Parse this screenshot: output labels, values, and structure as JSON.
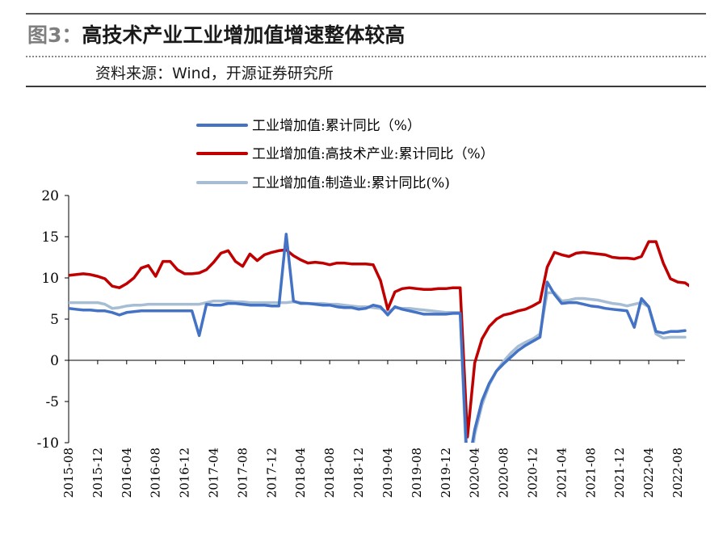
{
  "header": {
    "figure_label": "图3：",
    "title": "高技术产业工业增加值增速整体较高",
    "source": "资料来源：Wind，开源证券研究所"
  },
  "chart_data": {
    "type": "line",
    "legend_position": "top-center",
    "grid": false,
    "ylim": [
      -10,
      20
    ],
    "yticks": [
      -10,
      -5,
      0,
      5,
      10,
      15,
      20
    ],
    "xticks": [
      "2015-08",
      "2015-12",
      "2016-04",
      "2016-08",
      "2016-12",
      "2017-04",
      "2017-08",
      "2017-12",
      "2018-04",
      "2018-08",
      "2018-12",
      "2019-04",
      "2019-08",
      "2019-12",
      "2020-04",
      "2020-08",
      "2020-12",
      "2021-04",
      "2021-08",
      "2021-12",
      "2022-04",
      "2022-08"
    ],
    "x_start": "2015-08",
    "series": [
      {
        "name": "工业增加值:累计同比（%）",
        "color": "#4472C4",
        "values": [
          6.3,
          6.2,
          6.1,
          6.1,
          6.0,
          6.0,
          5.8,
          5.5,
          5.8,
          5.9,
          6.0,
          6.0,
          6.0,
          6.0,
          6.0,
          6.0,
          6.0,
          6.0,
          3.0,
          6.8,
          6.7,
          6.7,
          6.9,
          6.9,
          6.8,
          6.7,
          6.7,
          6.7,
          6.6,
          6.6,
          15.3,
          7.2,
          6.9,
          6.9,
          6.8,
          6.7,
          6.7,
          6.5,
          6.4,
          6.4,
          6.2,
          6.3,
          6.7,
          6.5,
          5.5,
          6.5,
          6.2,
          6.0,
          5.8,
          5.6,
          5.6,
          5.6,
          5.6,
          5.7,
          5.7,
          -13.5,
          -8.4,
          -4.9,
          -2.8,
          -1.3,
          -0.4,
          0.4,
          1.2,
          1.8,
          2.3,
          2.8,
          9.5,
          8.0,
          6.9,
          7.0,
          7.0,
          6.8,
          6.6,
          6.5,
          6.3,
          6.2,
          6.1,
          6.0,
          4.0,
          7.5,
          6.5,
          3.5,
          3.3,
          3.5,
          3.5,
          3.6
        ]
      },
      {
        "name": "工业增加值:高技术产业:累计同比（%）",
        "color": "#C00000",
        "values": [
          10.3,
          10.4,
          10.5,
          10.4,
          10.2,
          9.9,
          9.0,
          8.8,
          9.3,
          10.0,
          11.2,
          11.5,
          10.2,
          12.0,
          12.0,
          11.0,
          10.5,
          10.5,
          10.6,
          11.0,
          11.9,
          13.0,
          13.3,
          12.0,
          11.4,
          12.9,
          12.1,
          12.8,
          13.1,
          13.3,
          13.4,
          12.7,
          12.2,
          11.8,
          11.9,
          11.8,
          11.6,
          11.8,
          11.8,
          11.7,
          11.7,
          11.7,
          11.6,
          9.7,
          6.2,
          8.3,
          8.7,
          8.8,
          8.7,
          8.6,
          8.6,
          8.7,
          8.7,
          8.8,
          8.8,
          -9.3,
          -0.3,
          2.6,
          4.1,
          5.0,
          5.5,
          5.7,
          6.0,
          6.2,
          6.6,
          7.1,
          11.3,
          13.1,
          12.8,
          12.6,
          13.0,
          13.1,
          13.0,
          12.9,
          12.8,
          12.5,
          12.4,
          12.4,
          12.3,
          12.6,
          14.4,
          14.4,
          11.8,
          9.9,
          9.5,
          9.4,
          8.8
        ]
      },
      {
        "name": "工业增加值:制造业:累计同比(%)",
        "color": "#A6BDD4",
        "values": [
          7.0,
          7.0,
          7.0,
          7.0,
          7.0,
          6.8,
          6.3,
          6.4,
          6.6,
          6.7,
          6.7,
          6.8,
          6.8,
          6.8,
          6.8,
          6.8,
          6.8,
          6.8,
          6.8,
          7.0,
          7.2,
          7.2,
          7.2,
          7.1,
          7.1,
          7.0,
          7.0,
          7.0,
          7.0,
          7.0,
          7.0,
          7.1,
          7.0,
          6.9,
          6.9,
          6.9,
          6.8,
          6.8,
          6.7,
          6.6,
          6.5,
          6.5,
          6.4,
          6.3,
          5.8,
          6.4,
          6.3,
          6.3,
          6.2,
          6.1,
          6.0,
          5.9,
          5.8,
          5.8,
          5.8,
          -15.7,
          -9.0,
          -5.4,
          -3.0,
          -1.3,
          -0.1,
          0.9,
          1.7,
          2.2,
          2.6,
          3.2,
          8.2,
          8.2,
          7.2,
          7.3,
          7.5,
          7.5,
          7.4,
          7.3,
          7.1,
          6.9,
          6.8,
          6.6,
          6.8,
          7.0,
          6.5,
          3.2,
          2.7,
          2.8,
          2.8,
          2.8
        ]
      }
    ]
  }
}
